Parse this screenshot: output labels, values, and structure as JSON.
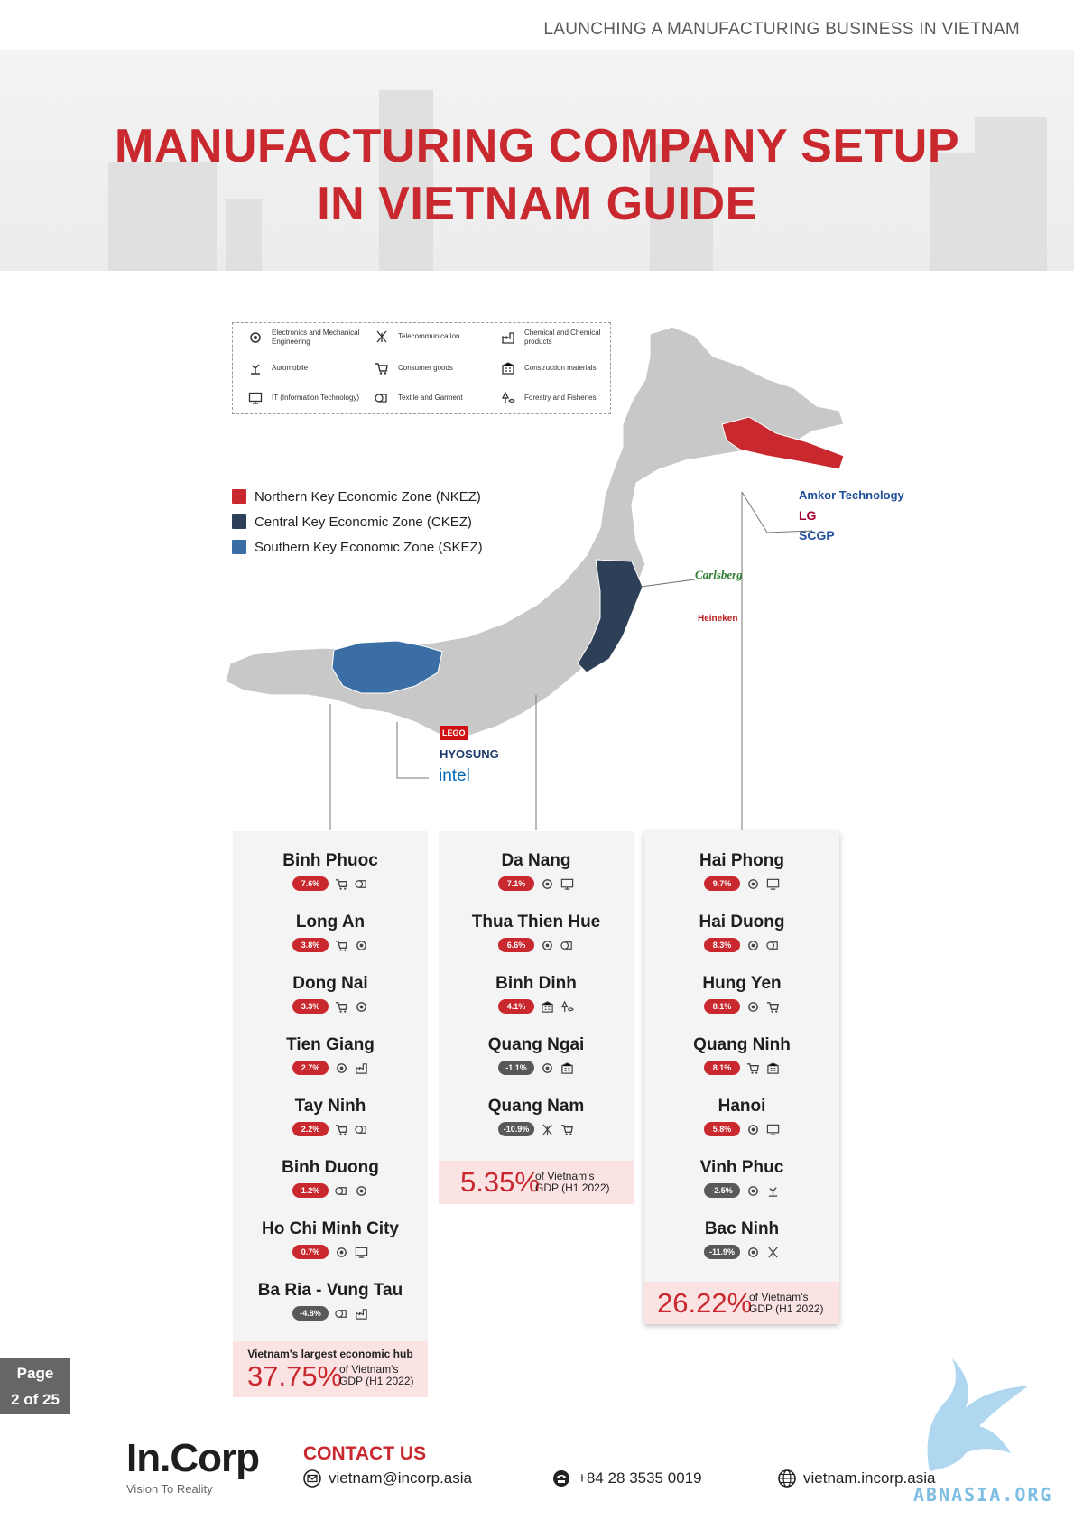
{
  "header": {
    "running_title": "LAUNCHING A MANUFACTURING BUSINESS IN VIETNAM",
    "title_line1": "MANUFACTURING COMPANY SETUP",
    "title_line2": "IN VIETNAM GUIDE"
  },
  "industries": [
    {
      "icon": "gear-circuit-icon",
      "label": "Electronics and Mechanical Engineering"
    },
    {
      "icon": "antenna-icon",
      "label": "Telecommunication"
    },
    {
      "icon": "factory-flask-icon",
      "label": "Chemical and Chemical products"
    },
    {
      "icon": "robot-arm-icon",
      "label": "Automobile"
    },
    {
      "icon": "shopping-cart-icon",
      "label": "Consumer goods"
    },
    {
      "icon": "building-crane-icon",
      "label": "Construction materials"
    },
    {
      "icon": "computer-monitor-icon",
      "label": "IT (Information Technology)"
    },
    {
      "icon": "fabric-roll-icon",
      "label": "Textile and Garment"
    },
    {
      "icon": "tree-fish-icon",
      "label": "Forestry and Fisheries"
    }
  ],
  "zones": [
    {
      "label": "Northern Key Economic Zone (NKEZ)",
      "color": "#c8282e"
    },
    {
      "label": "Central Key Economic Zone (CKEZ)",
      "color": "#2e4057"
    },
    {
      "label": "Southern Key Economic Zone (SKEZ)",
      "color": "#3a6ea5"
    }
  ],
  "logos": {
    "north": [
      "Amkor Technology",
      "LG",
      "SCGP"
    ],
    "central": [
      "Carlsberg",
      "Heineken"
    ],
    "south": [
      "LEGO",
      "HYOSUNG",
      "intel"
    ]
  },
  "columns": {
    "south": {
      "cities": [
        {
          "name": "Binh Phuoc",
          "growth": "7.6%",
          "sign": "pos",
          "icons": [
            "shopping-cart-icon",
            "fabric-roll-icon"
          ]
        },
        {
          "name": "Long An",
          "growth": "3.8%",
          "sign": "pos",
          "icons": [
            "shopping-cart-icon",
            "gear-circuit-icon"
          ]
        },
        {
          "name": "Dong Nai",
          "growth": "3.3%",
          "sign": "pos",
          "icons": [
            "shopping-cart-icon",
            "gear-circuit-icon"
          ]
        },
        {
          "name": "Tien Giang",
          "growth": "2.7%",
          "sign": "pos",
          "icons": [
            "gear-circuit-icon",
            "factory-flask-icon"
          ]
        },
        {
          "name": "Tay Ninh",
          "growth": "2.2%",
          "sign": "pos",
          "icons": [
            "shopping-cart-icon",
            "fabric-roll-icon"
          ]
        },
        {
          "name": "Binh Duong",
          "growth": "1.2%",
          "sign": "pos",
          "icons": [
            "fabric-roll-icon",
            "gear-circuit-icon"
          ]
        },
        {
          "name": "Ho Chi Minh City",
          "growth": "0.7%",
          "sign": "pos",
          "icons": [
            "gear-circuit-icon",
            "computer-monitor-icon"
          ]
        },
        {
          "name": "Ba Ria - Vung Tau",
          "growth": "-4.8%",
          "sign": "neg",
          "icons": [
            "fabric-roll-icon",
            "factory-flask-icon"
          ]
        }
      ],
      "hub_label": "Vietnam's largest economic hub",
      "gdp_pct": "37.75%",
      "gdp_of": "of Vietnam's",
      "gdp_period": "GDP (H1 2022)"
    },
    "central": {
      "cities": [
        {
          "name": "Da Nang",
          "growth": "7.1%",
          "sign": "pos",
          "icons": [
            "gear-circuit-icon",
            "computer-monitor-icon"
          ]
        },
        {
          "name": "Thua Thien Hue",
          "growth": "6.6%",
          "sign": "pos",
          "icons": [
            "gear-circuit-icon",
            "fabric-roll-icon"
          ]
        },
        {
          "name": "Binh Dinh",
          "growth": "4.1%",
          "sign": "pos",
          "icons": [
            "building-crane-icon",
            "tree-fish-icon"
          ]
        },
        {
          "name": "Quang Ngai",
          "growth": "-1.1%",
          "sign": "neg",
          "icons": [
            "gear-circuit-icon",
            "building-crane-icon"
          ]
        },
        {
          "name": "Quang Nam",
          "growth": "-10.9%",
          "sign": "neg",
          "icons": [
            "antenna-icon",
            "shopping-cart-icon"
          ]
        }
      ],
      "gdp_pct": "5.35%",
      "gdp_of": "of Vietnam's",
      "gdp_period": "GDP (H1 2022)"
    },
    "north": {
      "cities": [
        {
          "name": "Hai Phong",
          "growth": "9.7%",
          "sign": "pos",
          "icons": [
            "gear-circuit-icon",
            "computer-monitor-icon"
          ]
        },
        {
          "name": "Hai Duong",
          "growth": "8.3%",
          "sign": "pos",
          "icons": [
            "gear-circuit-icon",
            "fabric-roll-icon"
          ]
        },
        {
          "name": "Hung Yen",
          "growth": "8.1%",
          "sign": "pos",
          "icons": [
            "gear-circuit-icon",
            "shopping-cart-icon"
          ]
        },
        {
          "name": "Quang Ninh",
          "growth": "8.1%",
          "sign": "pos",
          "icons": [
            "shopping-cart-icon",
            "building-crane-icon"
          ]
        },
        {
          "name": "Hanoi",
          "growth": "5.8%",
          "sign": "pos",
          "icons": [
            "gear-circuit-icon",
            "computer-monitor-icon"
          ]
        },
        {
          "name": "Vinh Phuc",
          "growth": "-2.5%",
          "sign": "neg",
          "icons": [
            "gear-circuit-icon",
            "robot-arm-icon"
          ]
        },
        {
          "name": "Bac Ninh",
          "growth": "-11.9%",
          "sign": "neg",
          "icons": [
            "gear-circuit-icon",
            "antenna-icon"
          ]
        }
      ],
      "gdp_pct": "26.22%",
      "gdp_of": "of Vietnam's",
      "gdp_period": "GDP (H1 2022)"
    }
  },
  "page": {
    "label": "Page",
    "number": "2 of 25"
  },
  "footer": {
    "brand": "In.Corp",
    "tagline": "Vision To Reality",
    "contact_title": "CONTACT US",
    "email": "vietnam@incorp.asia",
    "phone": "+84 28 3535 0019",
    "website": "vietnam.incorp.asia",
    "watermark": "ABNASIA.ORG"
  }
}
